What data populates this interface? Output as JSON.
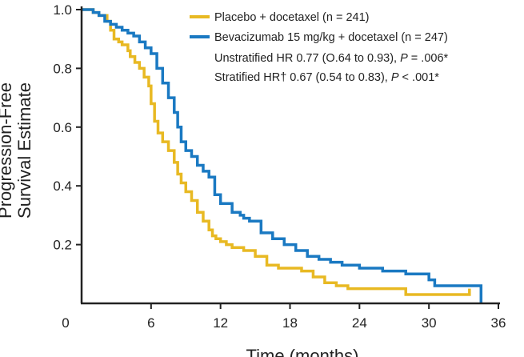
{
  "chart_data": {
    "type": "line",
    "xlabel": "Time (months)",
    "ylabel_lines": [
      "Progression-Free",
      "Survival Estimate"
    ],
    "xlim": [
      0,
      36
    ],
    "ylim": [
      0,
      1.0
    ],
    "x_ticks": [
      0,
      6,
      12,
      18,
      24,
      30,
      36
    ],
    "y_ticks": [
      0.2,
      0.4,
      0.6,
      0.8,
      1.0
    ],
    "x_tick_labels": [
      "0",
      "6",
      "12",
      "18",
      "24",
      "30",
      "36"
    ],
    "y_tick_labels": [
      "0.2",
      "0.4",
      "0.6",
      "0.8",
      "1.0"
    ],
    "grid": false,
    "legend_position": "top-right",
    "series": [
      {
        "name": "Placebo + docetaxel (n = 241)",
        "color": "#e8b923",
        "step": true,
        "x": [
          0,
          1.0,
          1.5,
          2.2,
          2.5,
          2.8,
          3.2,
          3.5,
          4.0,
          4.2,
          4.6,
          5.0,
          5.4,
          5.8,
          6.0,
          6.3,
          6.6,
          7.0,
          7.5,
          8.0,
          8.3,
          8.6,
          9.0,
          9.5,
          10.0,
          10.5,
          11.0,
          11.3,
          11.6,
          12.0,
          12.5,
          13.0,
          14.0,
          15.0,
          16.0,
          17.0,
          18.0,
          19.0,
          20.0,
          21.0,
          22.0,
          23.0,
          25.0,
          28.0,
          32.0,
          33.5
        ],
        "y": [
          1.0,
          0.99,
          0.98,
          0.96,
          0.93,
          0.9,
          0.89,
          0.88,
          0.86,
          0.84,
          0.82,
          0.8,
          0.77,
          0.74,
          0.68,
          0.62,
          0.58,
          0.55,
          0.52,
          0.48,
          0.44,
          0.41,
          0.38,
          0.35,
          0.31,
          0.28,
          0.25,
          0.23,
          0.22,
          0.21,
          0.2,
          0.19,
          0.18,
          0.16,
          0.13,
          0.12,
          0.12,
          0.11,
          0.09,
          0.07,
          0.06,
          0.05,
          0.05,
          0.03,
          0.03,
          0.05
        ]
      },
      {
        "name": "Bevacizumab 15 mg/kg + docetaxel (n = 247)",
        "color": "#1a79c2",
        "step": true,
        "x": [
          0,
          1.0,
          1.5,
          2.0,
          2.5,
          3.0,
          3.5,
          4.0,
          4.5,
          5.0,
          5.5,
          6.0,
          6.5,
          7.0,
          7.5,
          8.0,
          8.3,
          8.6,
          9.0,
          9.5,
          10.0,
          10.5,
          11.0,
          11.5,
          12.0,
          13.0,
          13.7,
          14.0,
          14.5,
          15.5,
          16.5,
          17.5,
          18.5,
          19.5,
          20.5,
          21.5,
          22.5,
          24.0,
          26.0,
          28.0,
          30.0,
          30.5,
          33.0,
          34.5
        ],
        "y": [
          1.0,
          0.99,
          0.98,
          0.96,
          0.95,
          0.94,
          0.93,
          0.92,
          0.91,
          0.89,
          0.87,
          0.85,
          0.8,
          0.75,
          0.7,
          0.65,
          0.6,
          0.55,
          0.52,
          0.5,
          0.47,
          0.45,
          0.43,
          0.37,
          0.34,
          0.31,
          0.3,
          0.29,
          0.28,
          0.24,
          0.22,
          0.2,
          0.18,
          0.16,
          0.15,
          0.14,
          0.13,
          0.12,
          0.11,
          0.1,
          0.08,
          0.06,
          0.06,
          0.0
        ]
      }
    ],
    "annotations": {
      "unstratified_prefix": "Unstratified HR 0.77 (O.64 to 0.93), ",
      "unstratified_p_label": "P",
      "unstratified_p_value": " = .006*",
      "stratified_prefix": "Stratified HR† 0.67 (0.54 to 0.83), ",
      "stratified_p_label": "P",
      "stratified_p_value": " < .001*"
    }
  }
}
